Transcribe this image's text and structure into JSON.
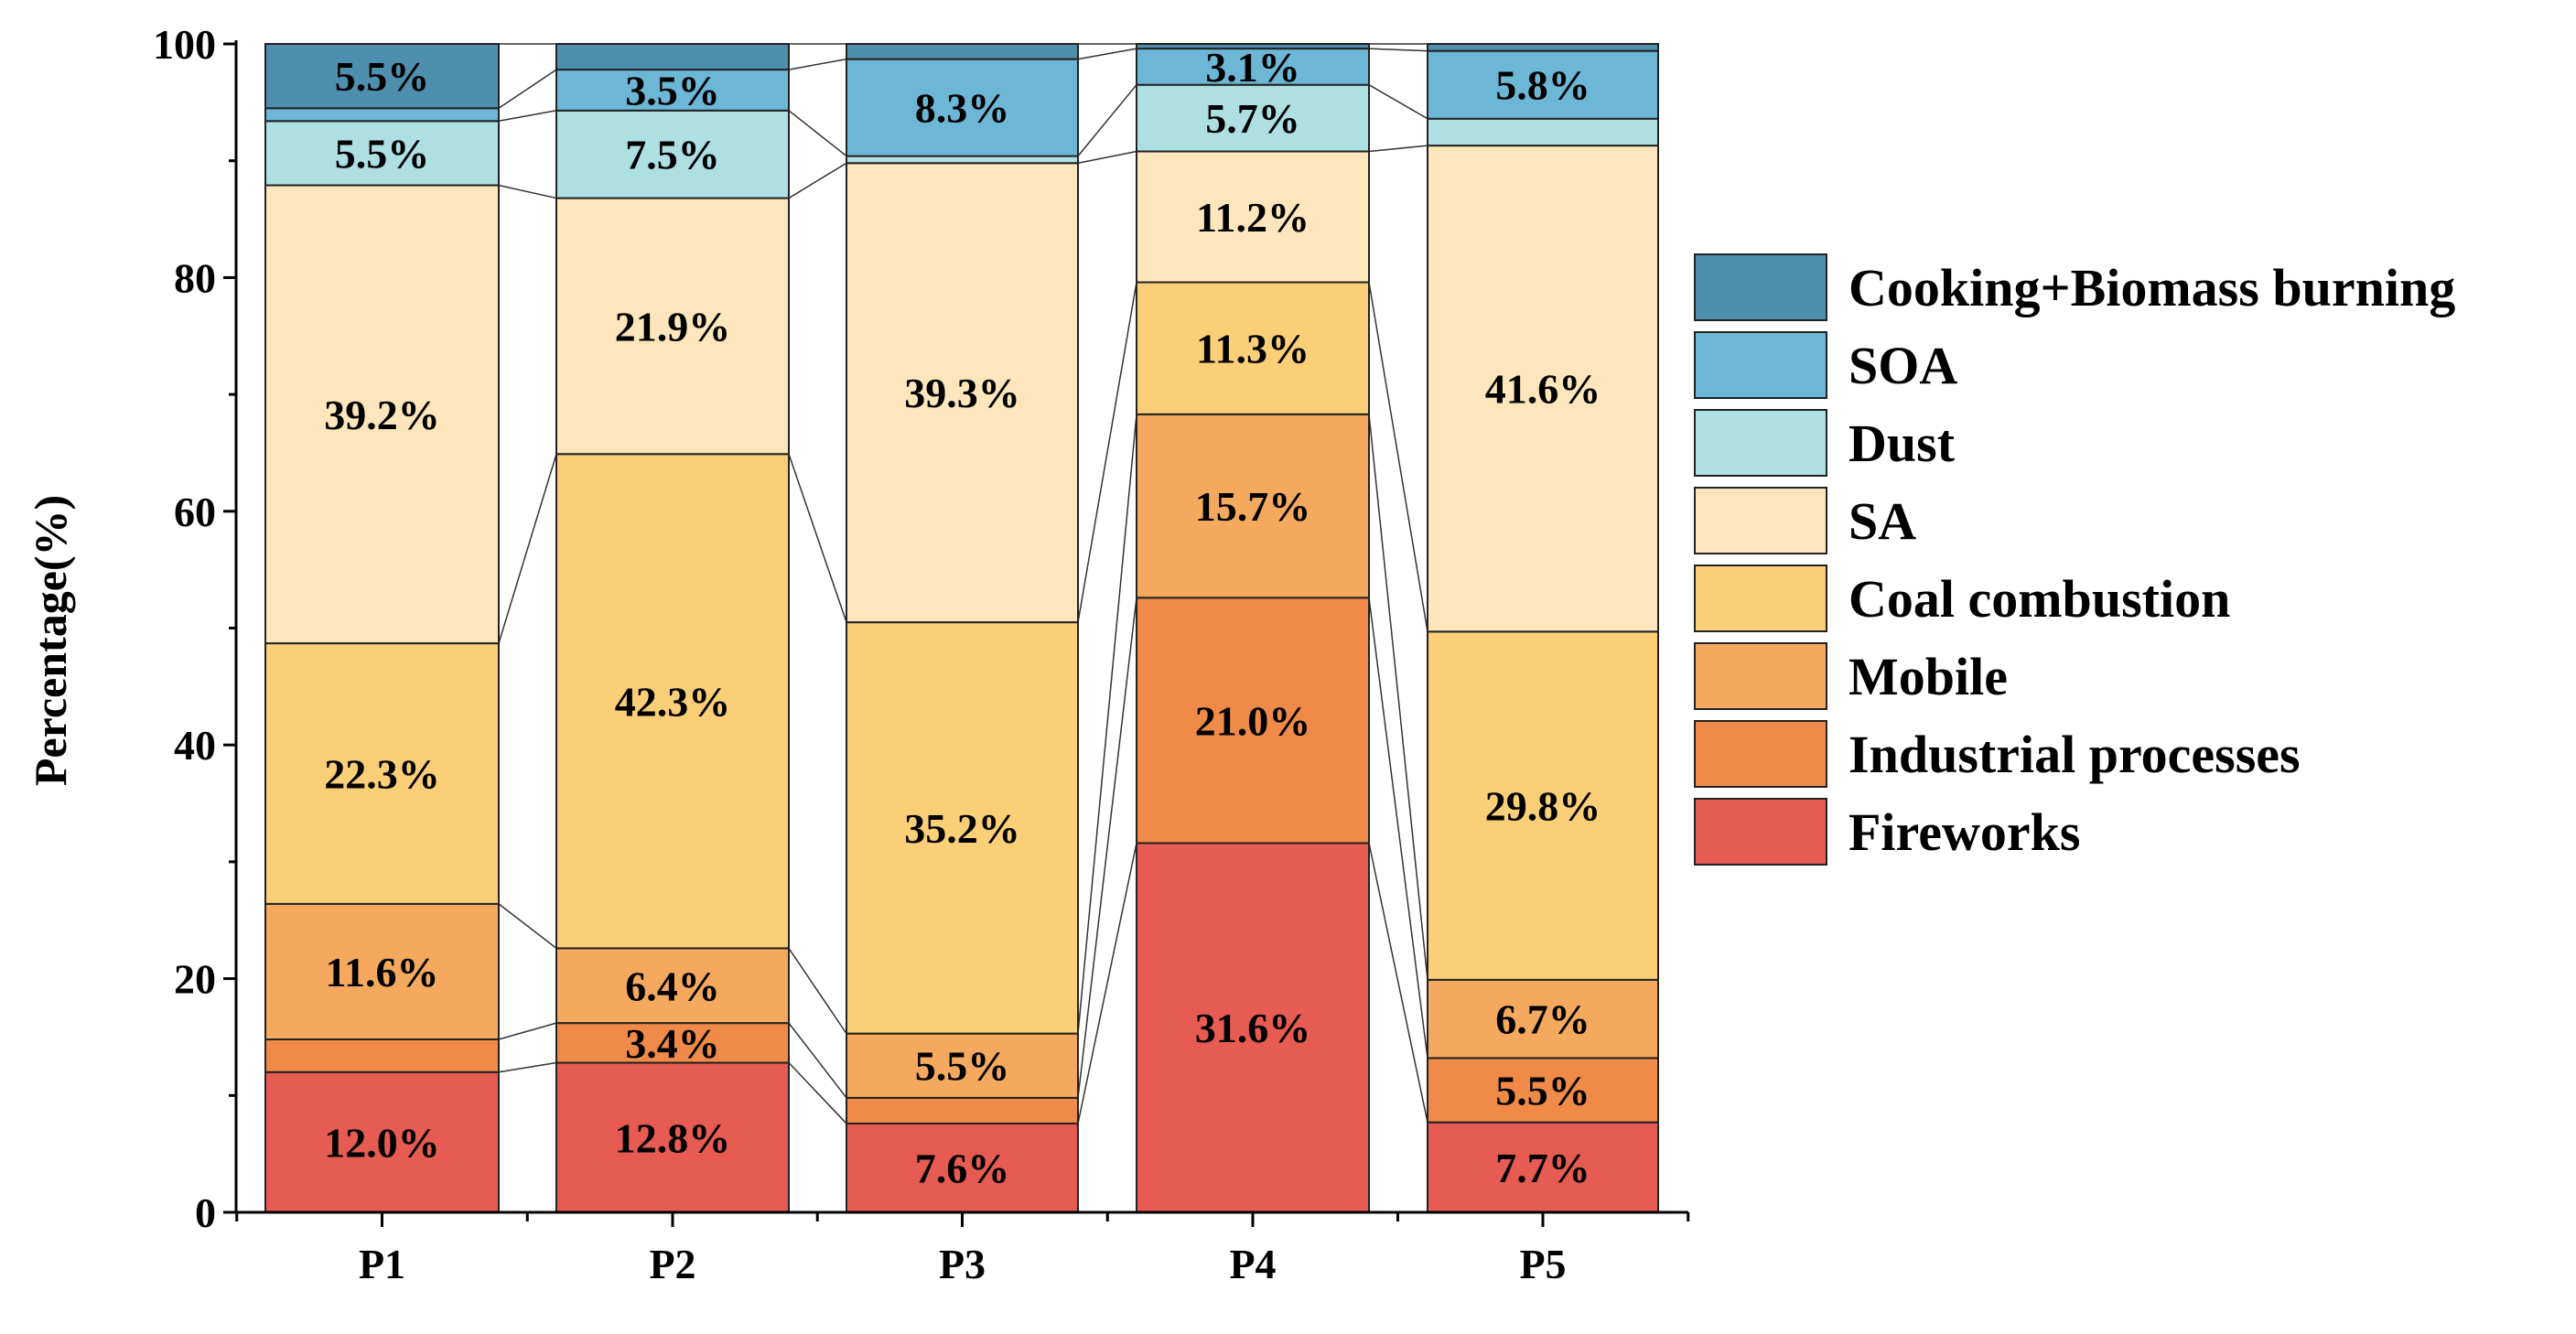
{
  "chart_data": {
    "type": "bar",
    "stacked": true,
    "title": "",
    "xlabel": "",
    "ylabel": "Percentage(%)",
    "ylim": [
      0,
      100
    ],
    "yticks": [
      "0",
      "20",
      "40",
      "60",
      "80",
      "100"
    ],
    "categories": [
      "P1",
      "P2",
      "P3",
      "P4",
      "P5"
    ],
    "legend_position": "right",
    "series": [
      {
        "name": "Fireworks",
        "color": "#e65b52",
        "values": [
          12.0,
          12.8,
          7.6,
          31.6,
          7.7
        ],
        "labels": [
          "12.0%",
          "12.8%",
          "7.6%",
          "31.6%",
          "7.7%"
        ]
      },
      {
        "name": "Industrial processes",
        "color": "#ef8a48",
        "values": [
          2.8,
          3.4,
          2.2,
          21.0,
          5.5
        ],
        "labels": [
          "",
          "3.4%",
          "",
          "21.0%",
          "5.5%"
        ]
      },
      {
        "name": "Mobile",
        "color": "#f5a95e",
        "values": [
          11.6,
          6.4,
          5.5,
          15.7,
          6.7
        ],
        "labels": [
          "11.6%",
          "6.4%",
          "5.5%",
          "15.7%",
          "6.7%"
        ]
      },
      {
        "name": "Coal combustion",
        "color": "#fbcf78",
        "values": [
          22.3,
          42.3,
          35.2,
          11.3,
          29.8
        ],
        "labels": [
          "22.3%",
          "42.3%",
          "35.2%",
          "11.3%",
          "29.8%"
        ]
      },
      {
        "name": "SA",
        "color": "#fde6bb",
        "values": [
          39.2,
          21.9,
          39.3,
          11.2,
          41.6
        ],
        "labels": [
          "39.2%",
          "21.9%",
          "39.3%",
          "11.2%",
          "41.6%"
        ]
      },
      {
        "name": "Dust",
        "color": "#aedfe3",
        "values": [
          5.5,
          7.5,
          0.6,
          5.7,
          2.3
        ],
        "labels": [
          "5.5%",
          "7.5%",
          "",
          "5.7%",
          ""
        ]
      },
      {
        "name": "SOA",
        "color": "#6db7d6",
        "values": [
          1.1,
          3.5,
          8.3,
          3.1,
          5.8
        ],
        "labels": [
          "",
          "3.5%",
          "8.3%",
          "3.1%",
          "5.8%"
        ]
      },
      {
        "name": "Cooking+Biomass burning",
        "color": "#4f8fae",
        "values": [
          5.5,
          2.2,
          1.3,
          0.4,
          0.6
        ],
        "labels": [
          "5.5%",
          "",
          "",
          "",
          ""
        ]
      }
    ],
    "legend_order": [
      "Cooking+Biomass burning",
      "SOA",
      "Dust",
      "SA",
      "Coal combustion",
      "Mobile",
      "Industrial processes",
      "Fireworks"
    ]
  }
}
